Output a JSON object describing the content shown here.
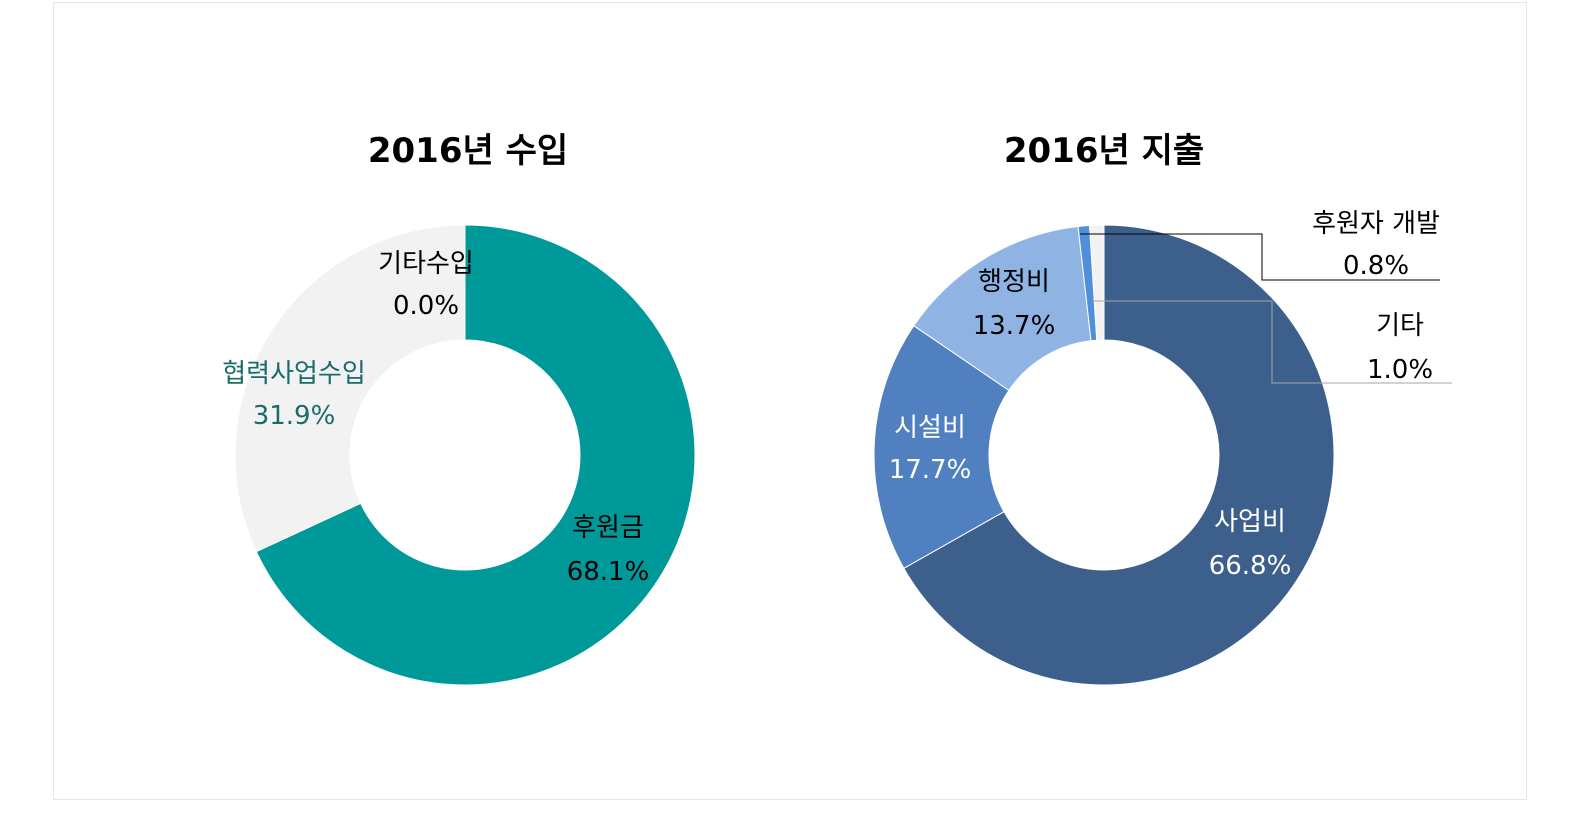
{
  "chart_data": [
    {
      "type": "pie",
      "donut": true,
      "title": "2016년 수입",
      "slices": [
        {
          "label": "후원금",
          "value": 68.1,
          "display": "68.1%",
          "color": "#009999",
          "text_color": "#000000"
        },
        {
          "label": "협력사업수입",
          "value": 31.9,
          "display": "31.9%",
          "color": "#f2f2f2",
          "text_color": "#1a6b6b"
        },
        {
          "label": "기타수입",
          "value": 0.0,
          "display": "0.0%",
          "color": "#d9d9d9",
          "text_color": "#000000"
        }
      ]
    },
    {
      "type": "pie",
      "donut": true,
      "title": "2016년 지출",
      "slices": [
        {
          "label": "사업비",
          "value": 66.8,
          "display": "66.8%",
          "color": "#3d5f8c",
          "text_color": "#ffffff"
        },
        {
          "label": "시설비",
          "value": 17.7,
          "display": "17.7%",
          "color": "#5080bf",
          "text_color": "#ffffff"
        },
        {
          "label": "행정비",
          "value": 13.7,
          "display": "13.7%",
          "color": "#8fb4e3",
          "text_color": "#000000"
        },
        {
          "label": "후원자 개발",
          "value": 0.8,
          "display": "0.8%",
          "color": "#4f8fdb",
          "text_color": "#000000"
        },
        {
          "label": "기타",
          "value": 1.0,
          "display": "1.0%",
          "color": "#f2f2f2",
          "text_color": "#000000"
        }
      ]
    }
  ]
}
